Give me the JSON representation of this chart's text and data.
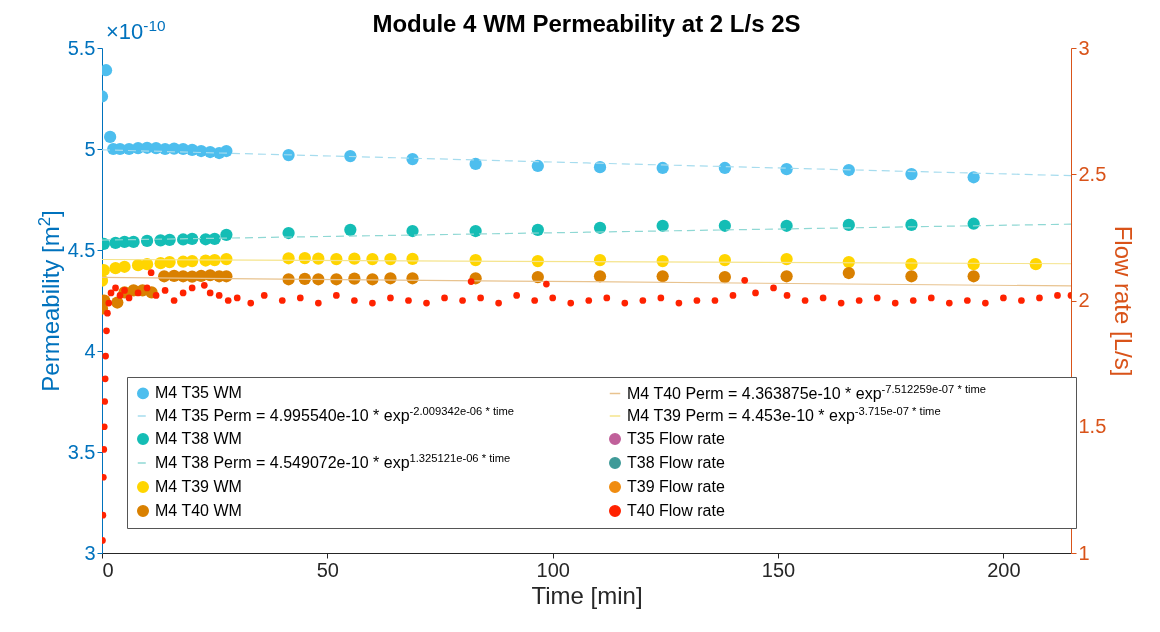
{
  "chart_data": {
    "type": "scatter",
    "title": "Module 4 WM Permeability at 2 L/s 2S",
    "xlabel": "Time [min]",
    "ylabel": "Permeability [m$^{2}$]",
    "y2label": "Flow rate [L/s]",
    "annotations": [
      "×10$^{-10}$"
    ],
    "xlim": [
      0,
      215
    ],
    "xticks": [
      0,
      50,
      100,
      150,
      200
    ],
    "ylim": [
      3,
      5.5
    ],
    "yticks": [
      3,
      3.5,
      4,
      4.5,
      5,
      5.5
    ],
    "y2lim": [
      1,
      3
    ],
    "y2ticks": [
      1,
      1.5,
      2,
      2.5,
      3
    ],
    "grid": false,
    "legend": "bottom left",
    "marker": "circle",
    "series": [
      {
        "name": "M4 T35 WM",
        "color": "#4dbeee",
        "x": [
          0,
          0.9,
          1.8,
          2.5,
          4,
          6,
          8,
          10,
          12,
          14,
          16,
          18,
          20,
          22,
          24,
          26,
          27.6,
          41.4,
          55.1,
          68.9,
          82.9,
          96.7,
          110.5,
          124.4,
          138.2,
          151.9,
          165.7,
          179.6,
          193.4
        ],
        "values": [
          5.26,
          5.39,
          5.06,
          5.0,
          5.0,
          5.0,
          5.004,
          5.006,
          5.004,
          5.0,
          5.002,
          5.0,
          4.996,
          4.99,
          4.985,
          4.98,
          4.99,
          4.97,
          4.965,
          4.95,
          4.926,
          4.916,
          4.91,
          4.906,
          4.906,
          4.9,
          4.896,
          4.876,
          4.86
        ]
      },
      {
        "name": "M4 T35 Perm = 4.995540e-10 * exp$^{-2.009342e-06 * time}$",
        "type": "line",
        "marker": "none",
        "line_style": "dashed",
        "color": "#a6dcee",
        "x": [
          0,
          107.5,
          215
        ],
        "values": [
          4.996,
          4.931,
          4.868
        ]
      },
      {
        "name": "M4 T38 WM",
        "color": "#14bdb5",
        "x": [
          0.4,
          3,
          5,
          7,
          10,
          13,
          15,
          18,
          20,
          23,
          25,
          27.6,
          41.4,
          55.1,
          68.9,
          82.9,
          96.7,
          110.5,
          124.4,
          138.2,
          151.9,
          165.7,
          179.6,
          193.4
        ],
        "values": [
          4.53,
          4.535,
          4.54,
          4.54,
          4.545,
          4.548,
          4.55,
          4.552,
          4.555,
          4.553,
          4.555,
          4.575,
          4.584,
          4.6,
          4.594,
          4.594,
          4.6,
          4.61,
          4.62,
          4.62,
          4.62,
          4.624,
          4.624,
          4.63
        ]
      },
      {
        "name": "M4 T38 Perm = 4.549072e-10 * exp$^{1.325121e-06 * time}$",
        "type": "line",
        "marker": "none",
        "line_style": "dashed",
        "color": "#8fd8d4",
        "x": [
          0,
          107.5,
          215
        ],
        "values": [
          4.549,
          4.588,
          4.628
        ]
      },
      {
        "name": "M4 T39 WM",
        "color": "#ffd500",
        "x": [
          0,
          0.4,
          3,
          5,
          8,
          10,
          13,
          15,
          18,
          20,
          23,
          25,
          27.6,
          41.4,
          45,
          48,
          52,
          56,
          60,
          64,
          68.9,
          82.9,
          96.7,
          110.5,
          124.4,
          138.2,
          151.9,
          165.7,
          179.6,
          193.4,
          207.2
        ],
        "values": [
          4.348,
          4.4,
          4.41,
          4.417,
          4.425,
          4.43,
          4.435,
          4.44,
          4.442,
          4.445,
          4.448,
          4.45,
          4.455,
          4.459,
          4.46,
          4.457,
          4.455,
          4.457,
          4.455,
          4.455,
          4.456,
          4.45,
          4.445,
          4.45,
          4.445,
          4.45,
          4.455,
          4.44,
          4.43,
          4.43,
          4.43
        ]
      },
      {
        "name": "M4 T40 WM",
        "color": "#d98000",
        "x": [
          0,
          0.5,
          3.4,
          5,
          7,
          9,
          11,
          13.8,
          16,
          18,
          20,
          22,
          24,
          26,
          27.6,
          41.4,
          45,
          48,
          52,
          56,
          60,
          64,
          68.9,
          82.9,
          96.7,
          110.5,
          124.4,
          138.2,
          151.9,
          165.7,
          179.6,
          193.4
        ],
        "values": [
          4.21,
          4.25,
          4.24,
          4.29,
          4.3,
          4.3,
          4.29,
          4.37,
          4.372,
          4.37,
          4.368,
          4.372,
          4.375,
          4.37,
          4.37,
          4.355,
          4.357,
          4.355,
          4.355,
          4.358,
          4.355,
          4.36,
          4.36,
          4.36,
          4.366,
          4.37,
          4.37,
          4.366,
          4.37,
          4.386,
          4.37,
          4.37
        ]
      },
      {
        "name": "M4 T40 Perm = 4.363875e-10 * exp$^{-7.512259e-07 * time}$",
        "type": "line",
        "marker": "none",
        "line_style": "solid",
        "color": "#e8c38f",
        "x": [
          0,
          107.5,
          215
        ],
        "values": [
          4.364,
          4.343,
          4.322
        ]
      },
      {
        "name": "M4 T39 Perm = 4.453e-10 * exp$^{-3.715e-07 * time}$",
        "type": "line",
        "marker": "none",
        "line_style": "solid",
        "color": "#f5e48c",
        "x": [
          0,
          107.5,
          215
        ],
        "values": [
          4.453,
          4.442,
          4.432
        ]
      },
      {
        "name": "T35 Flow rate",
        "axis": "y2",
        "color": "#c0609a"
      },
      {
        "name": "T38 Flow rate",
        "axis": "y2",
        "color": "#3f9a98"
      },
      {
        "name": "T39 Flow rate",
        "axis": "y2",
        "color": "#f08c10"
      },
      {
        "name": "T40 Flow rate",
        "axis": "y2",
        "color": "#ff2200",
        "x": [
          0.1,
          0.2,
          0.3,
          0.4,
          0.5,
          0.6,
          0.7,
          0.8,
          1,
          1.2,
          1.5,
          2,
          3,
          4,
          5,
          6,
          8,
          10,
          10.9,
          12,
          14,
          16,
          18,
          20,
          22.7,
          24,
          26,
          28,
          30,
          33,
          36,
          40,
          44,
          48,
          52,
          56,
          60,
          64,
          68,
          72,
          76,
          80,
          81.9,
          84,
          88,
          92,
          96,
          98.6,
          100,
          104,
          108,
          112,
          116,
          120,
          124,
          128,
          132,
          136,
          140,
          142.6,
          145,
          149,
          152,
          156,
          160,
          164,
          168,
          172,
          176,
          180,
          184,
          188,
          192,
          196,
          200,
          204,
          208,
          212,
          215
        ],
        "values": [
          1.05,
          1.15,
          1.3,
          1.41,
          1.5,
          1.6,
          1.69,
          1.78,
          1.88,
          1.95,
          1.99,
          2.03,
          2.05,
          2.02,
          2.04,
          2.01,
          2.03,
          2.05,
          2.11,
          2.02,
          2.04,
          2.0,
          2.03,
          2.05,
          2.06,
          2.03,
          2.02,
          2.0,
          2.01,
          1.99,
          2.02,
          2.0,
          2.01,
          1.99,
          2.02,
          2.0,
          1.99,
          2.01,
          2.0,
          1.99,
          2.01,
          2.0,
          2.075,
          2.01,
          1.99,
          2.02,
          2.0,
          2.065,
          2.01,
          1.99,
          2.0,
          2.01,
          1.99,
          2.0,
          2.01,
          1.99,
          2.0,
          2.0,
          2.02,
          2.08,
          2.03,
          2.05,
          2.02,
          2.0,
          2.01,
          1.99,
          2.0,
          2.01,
          1.99,
          2.0,
          2.01,
          1.99,
          2.0,
          1.99,
          2.01,
          2.0,
          2.01,
          2.02,
          2.02
        ]
      }
    ]
  }
}
